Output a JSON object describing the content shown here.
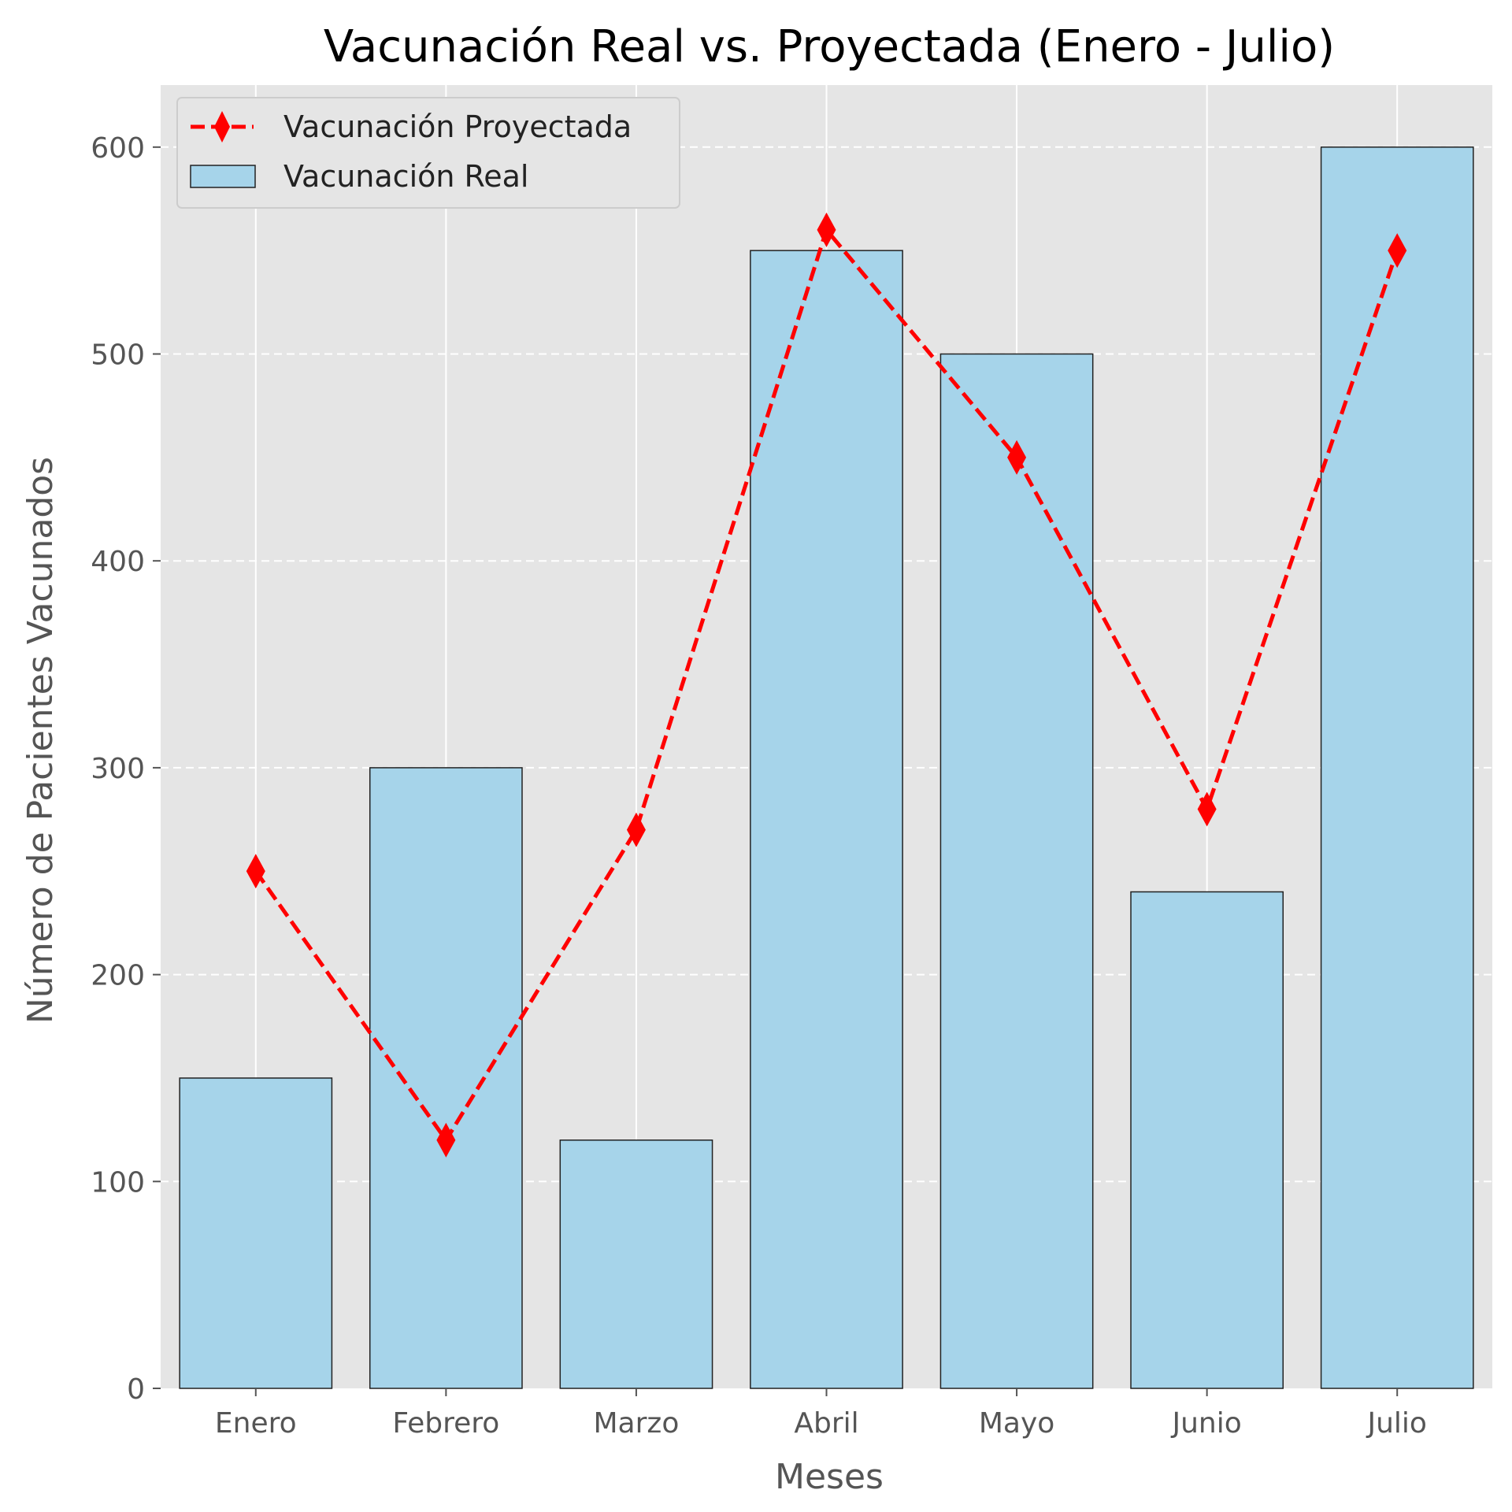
{
  "chart_data": {
    "type": "bar",
    "title": "Vacunación Real vs. Proyectada (Enero - Julio)",
    "xlabel": "Meses",
    "ylabel": "Número de Pacientes Vacunados",
    "categories": [
      "Enero",
      "Febrero",
      "Marzo",
      "Abril",
      "Mayo",
      "Junio",
      "Julio"
    ],
    "ylim": [
      0,
      630
    ],
    "yticks": [
      0,
      100,
      200,
      300,
      400,
      500,
      600
    ],
    "grid": true,
    "legend_position": "top-left",
    "series": [
      {
        "name": "Vacunación Real",
        "kind": "bar",
        "values": [
          150,
          300,
          120,
          550,
          500,
          240,
          600
        ],
        "color": "#a6d4ea",
        "edge_color": "#222222"
      },
      {
        "name": "Vacunación Proyectada",
        "kind": "line",
        "line_style": "dashed",
        "marker": "diamond",
        "values": [
          250,
          120,
          270,
          560,
          450,
          280,
          550
        ],
        "color": "#ff0000"
      }
    ]
  }
}
